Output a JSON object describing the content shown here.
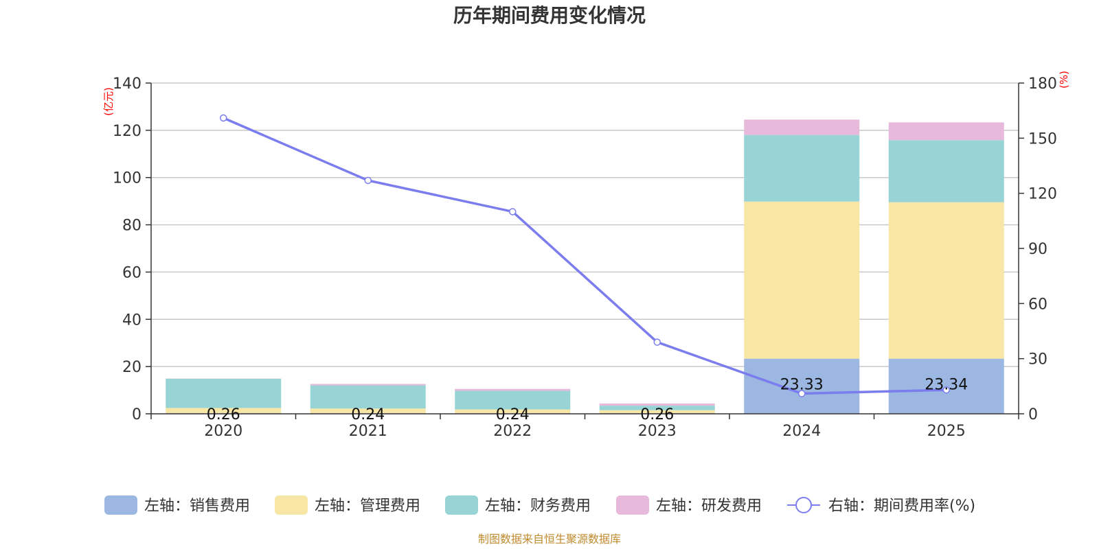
{
  "chart_data": {
    "type": "bar",
    "title": "历年期间费用变化情况",
    "categories": [
      "2020",
      "2021",
      "2022",
      "2023",
      "2024",
      "2025"
    ],
    "y_left": {
      "unit": "(亿元)",
      "ylim": [
        0,
        140
      ],
      "ticks": [
        0,
        20,
        40,
        60,
        80,
        100,
        120,
        140
      ]
    },
    "y_right": {
      "unit": "(%)",
      "ylim": [
        0,
        180
      ],
      "ticks": [
        0,
        30,
        60,
        90,
        120,
        150,
        180
      ]
    },
    "series": [
      {
        "name": "左轴：销售费用",
        "type": "bar",
        "stack": "left",
        "color": "#9cb7e2",
        "values": [
          0.26,
          0.24,
          0.24,
          0.26,
          23.33,
          23.34
        ],
        "labels": [
          "0.26",
          "0.24",
          "0.24",
          "0.26",
          "23.33",
          "23.34"
        ]
      },
      {
        "name": "左轴：管理费用",
        "type": "bar",
        "stack": "left",
        "color": "#f8e6a6",
        "values": [
          2.2,
          2.0,
          1.6,
          1.3,
          66.5,
          66.2
        ]
      },
      {
        "name": "左轴：财务费用",
        "type": "bar",
        "stack": "left",
        "color": "#98d4d5",
        "values": [
          12.4,
          9.8,
          7.9,
          1.9,
          28.2,
          26.3
        ]
      },
      {
        "name": "左轴：研发费用",
        "type": "bar",
        "stack": "left",
        "color": "#e7b9da",
        "values": [
          0.1,
          0.6,
          0.8,
          0.9,
          6.5,
          7.5
        ]
      },
      {
        "name": "右轴：期间费用率(%)",
        "type": "line",
        "axis": "right",
        "color": "#7b7cee",
        "values": [
          161,
          127,
          110,
          39,
          11,
          13
        ]
      }
    ],
    "legend_position": "bottom",
    "grid": true
  },
  "source": "制图数据来自恒生聚源数据库"
}
